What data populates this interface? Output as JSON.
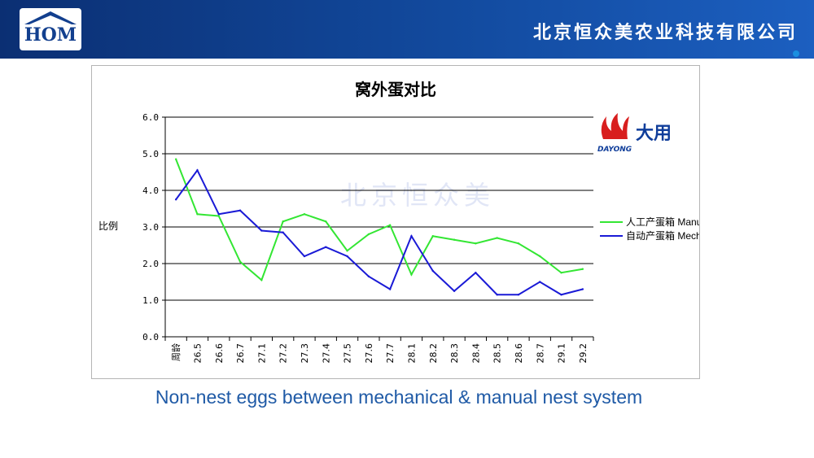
{
  "header": {
    "company": "北京恒众美农业科技有限公司",
    "logo_text": "HOM"
  },
  "caption": "Non-nest eggs between mechanical & manual nest system",
  "watermark": "北京恒众美",
  "brand": {
    "cn": "大用",
    "en": "DAYONG"
  },
  "colors": {
    "header": "#124a9e",
    "manual": "#33e633",
    "mechanical": "#1a1ad6",
    "caption": "#1f5aa6"
  },
  "chart_data": {
    "type": "line",
    "title": "窝外蛋对比",
    "ylabel": "比例",
    "ylim": [
      0,
      6
    ],
    "yticks": [
      "0.0",
      "1.0",
      "2.0",
      "3.0",
      "4.0",
      "5.0",
      "6.0"
    ],
    "categories": [
      "周龄",
      "26.5",
      "26.6",
      "26.7",
      "27.1",
      "27.2",
      "27.3",
      "27.4",
      "27.5",
      "27.6",
      "27.7",
      "28.1",
      "28.2",
      "28.3",
      "28.4",
      "28.5",
      "28.6",
      "28.7",
      "29.1",
      "29.2"
    ],
    "legend_position": "right",
    "grid": true,
    "series": [
      {
        "name": "人工产蛋箱 Manual nest",
        "color": "#33e633",
        "values": [
          4.85,
          3.35,
          3.3,
          2.05,
          1.55,
          3.15,
          3.35,
          3.15,
          2.35,
          2.8,
          3.05,
          1.7,
          2.75,
          2.65,
          2.55,
          2.7,
          2.55,
          2.2,
          1.75,
          1.85
        ]
      },
      {
        "name": "自动产蛋箱 Mechanical nest",
        "color": "#1a1ad6",
        "values": [
          3.75,
          4.55,
          3.35,
          3.45,
          2.9,
          2.85,
          2.2,
          2.45,
          2.2,
          1.65,
          1.3,
          2.75,
          1.8,
          1.25,
          1.75,
          1.15,
          1.15,
          1.5,
          1.15,
          1.3
        ]
      }
    ]
  }
}
